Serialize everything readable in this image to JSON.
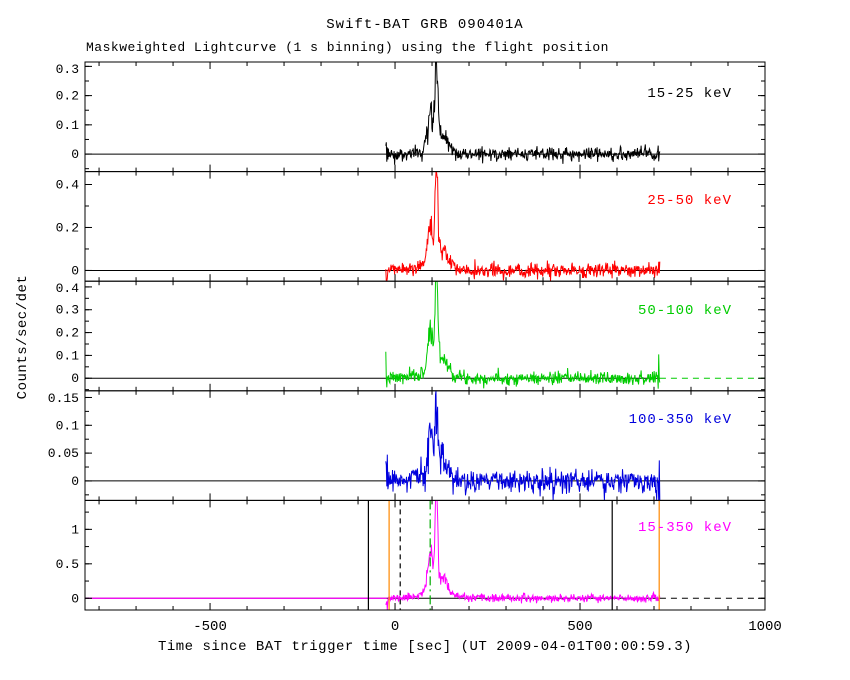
{
  "title": "Swift-BAT GRB 090401A",
  "subtitle": "Maskweighted Lightcurve (1 s binning) using the flight position",
  "xlabel": "Time since BAT trigger time [sec] (UT 2009-04-01T00:00:59.3)",
  "ylabel": "Counts/sec/det",
  "chart_data": {
    "type": "line",
    "title": "Swift-BAT GRB 090401A",
    "subtitle": "Maskweighted Lightcurve (1 s binning) using the flight position",
    "xlabel": "Time since BAT trigger time [sec] (UT 2009-04-01T00:00:59.3)",
    "ylabel": "Counts/sec/det",
    "xlim": [
      -838,
      1000
    ],
    "x_major_ticks": [
      -500,
      0,
      500,
      1000
    ],
    "x_tick_labels": [
      "-500",
      "0",
      "500",
      "1000"
    ],
    "x_minor_step": 100,
    "data_start": -25,
    "data_end": 716,
    "burst": {
      "precursor_time": 95,
      "peak_time": 112,
      "tail_time": 126,
      "approx_duration_sec": 120
    },
    "panels": [
      {
        "label": "15-25 keV",
        "color": "#000000",
        "peak_counts": 0.29,
        "ylim": [
          -0.06,
          0.315
        ],
        "ytick_values": [
          0,
          0.1,
          0.2,
          0.3
        ],
        "ytick_labels": [
          "0",
          "0.1",
          "0.2",
          "0.3"
        ],
        "minor_step": 0.05,
        "noise_sigma": 0.012,
        "seed": 3
      },
      {
        "label": "25-50 keV",
        "color": "#ff0000",
        "peak_counts": 0.45,
        "ylim": [
          -0.05,
          0.46
        ],
        "ytick_values": [
          0,
          0.2,
          0.4
        ],
        "ytick_labels": [
          "0",
          "0.2",
          "0.4"
        ],
        "minor_step": 0.1,
        "noise_sigma": 0.016,
        "seed": 5
      },
      {
        "label": "50-100 keV",
        "color": "#00cc00",
        "peak_counts": 0.42,
        "ylim": [
          -0.055,
          0.425
        ],
        "ytick_values": [
          0,
          0.1,
          0.2,
          0.3,
          0.4
        ],
        "ytick_labels": [
          "0",
          "0.1",
          "0.2",
          "0.3",
          "0.4"
        ],
        "minor_step": 0.05,
        "noise_sigma": 0.014,
        "seed": 7,
        "zero_dash_right": "#00cc00"
      },
      {
        "label": "100-350 keV",
        "color": "#0000dd",
        "peak_counts": 0.155,
        "ylim": [
          -0.035,
          0.162
        ],
        "ytick_values": [
          0,
          0.05,
          0.1,
          0.15
        ],
        "ytick_labels": [
          "0",
          "0.05",
          "0.1",
          "0.15"
        ],
        "minor_step": 0.025,
        "noise_sigma": 0.011,
        "seed": 9
      },
      {
        "label": "15-350 keV",
        "color": "#ff00ff",
        "peak_counts": 1.32,
        "ylim": [
          -0.17,
          1.42
        ],
        "ytick_values": [
          0,
          0.5,
          1
        ],
        "ytick_labels": [
          "0",
          "0.5",
          "1"
        ],
        "minor_step": 0.25,
        "noise_sigma": 0.028,
        "seed": 11,
        "flat_left": true,
        "zero_dash_right": "#000000"
      }
    ],
    "annotations_bottom_panel": [
      {
        "t": -72,
        "color": "#000000",
        "style": "solid"
      },
      {
        "t": -16,
        "color": "#ff8800",
        "style": "solid"
      },
      {
        "t": 14,
        "color": "#000000",
        "style": "dashed"
      },
      {
        "t": 95,
        "color": "#00aa00",
        "style": "dashdot"
      },
      {
        "t": 587,
        "color": "#000000",
        "style": "solid"
      },
      {
        "t": 714,
        "color": "#ff8800",
        "style": "solid"
      }
    ]
  }
}
